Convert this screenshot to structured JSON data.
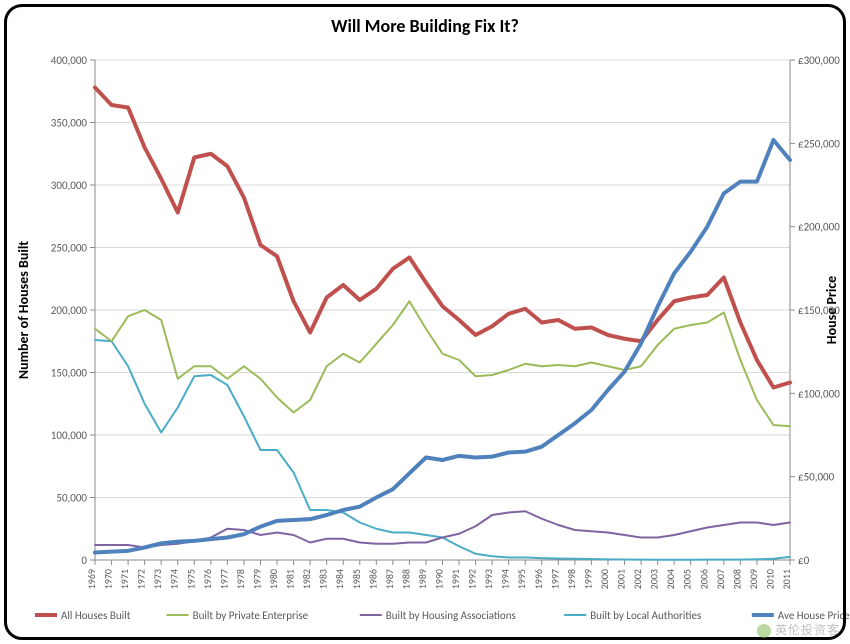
{
  "chart": {
    "type": "line",
    "title": "Will More Building Fix It?",
    "title_fontsize": 18,
    "title_fontweight": "bold",
    "background_color": "#ffffff",
    "plot_background": "#ffffff",
    "border_color": "#8b8b8b",
    "grid_color": "#d9d9d9",
    "axis_line_color": "#8b8b8b",
    "tick_color": "#8b8b8b",
    "font_family": "Calibri, Arial, sans-serif",
    "x": {
      "label": "",
      "categories": [
        "1969",
        "1970",
        "1971",
        "1972",
        "1973",
        "1974",
        "1975",
        "1976",
        "1977",
        "1978",
        "1979",
        "1980",
        "1981",
        "1982",
        "1983",
        "1984",
        "1985",
        "1986",
        "1987",
        "1988",
        "1989",
        "1990",
        "1991",
        "1992",
        "1993",
        "1994",
        "1995",
        "1996",
        "1997",
        "1998",
        "1999",
        "2000",
        "2001",
        "2002",
        "2003",
        "2004",
        "2005",
        "2006",
        "2007",
        "2008",
        "2009",
        "2010",
        "2011"
      ],
      "tick_fontsize": 10,
      "rotate": -90
    },
    "y_left": {
      "label": "Number of Houses Built",
      "label_fontsize": 14,
      "label_fontweight": "bold",
      "min": 0,
      "max": 400000,
      "tick_step": 50000,
      "tick_format": "#,##0",
      "tick_fontsize": 11
    },
    "y_right": {
      "label": "House Price",
      "label_fontsize": 14,
      "label_fontweight": "bold",
      "min": 0,
      "max": 300000,
      "tick_step": 50000,
      "tick_format": "£#,##0",
      "tick_fontsize": 11
    },
    "legend": {
      "position": "bottom",
      "fontsize": 11,
      "items": [
        {
          "key": "all",
          "label": "All Houses Built",
          "color": "#c0504d",
          "width": 4
        },
        {
          "key": "private",
          "label": "Built by Private Enterprise",
          "color": "#9bbb59",
          "width": 2
        },
        {
          "key": "assoc",
          "label": "Built by Housing Associations",
          "color": "#8064a2",
          "width": 2
        },
        {
          "key": "local",
          "label": "Built by Local Authorities",
          "color": "#4bacc6",
          "width": 2
        },
        {
          "key": "price",
          "label": "Ave House Price",
          "color": "#4f81bd",
          "width": 4
        }
      ]
    },
    "series": {
      "all": {
        "axis": "left",
        "color": "#c0504d",
        "width": 4,
        "values": [
          378000,
          364000,
          362000,
          330000,
          305000,
          278000,
          322000,
          325000,
          315000,
          290000,
          252000,
          243000,
          207000,
          182000,
          210000,
          220000,
          208000,
          217000,
          233000,
          242000,
          222000,
          203000,
          192000,
          180000,
          187000,
          197000,
          201000,
          190000,
          192000,
          185000,
          186000,
          180000,
          177000,
          175000,
          192000,
          207000,
          210000,
          212000,
          226000,
          190000,
          160000,
          138000,
          142000
        ]
      },
      "private": {
        "axis": "left",
        "color": "#9bbb59",
        "width": 2,
        "values": [
          185000,
          175000,
          195000,
          200000,
          192000,
          145000,
          155000,
          155000,
          145000,
          155000,
          145000,
          130000,
          118000,
          128000,
          155000,
          165000,
          158000,
          173000,
          188000,
          207000,
          185000,
          165000,
          160000,
          147000,
          148000,
          152000,
          157000,
          155000,
          156000,
          155000,
          158000,
          155000,
          152000,
          155000,
          172000,
          185000,
          188000,
          190000,
          198000,
          160000,
          128000,
          108000,
          107000
        ]
      },
      "assoc": {
        "axis": "left",
        "color": "#8064a2",
        "width": 2,
        "values": [
          12000,
          12000,
          12000,
          10000,
          12000,
          13000,
          15000,
          18000,
          25000,
          24000,
          20000,
          22000,
          20000,
          14000,
          17000,
          17000,
          14000,
          13000,
          13000,
          14000,
          14000,
          18000,
          21000,
          27000,
          36000,
          38000,
          39000,
          33000,
          28000,
          24000,
          23000,
          22000,
          20000,
          18000,
          18000,
          20000,
          23000,
          26000,
          28000,
          30000,
          30000,
          28000,
          30000
        ]
      },
      "local": {
        "axis": "left",
        "color": "#4bacc6",
        "width": 2,
        "values": [
          176000,
          175000,
          155000,
          125000,
          102000,
          122000,
          147000,
          148000,
          140000,
          115000,
          88000,
          88000,
          70000,
          40000,
          40000,
          38000,
          30000,
          25000,
          22000,
          22000,
          20000,
          18000,
          11000,
          5000,
          3000,
          2000,
          2000,
          1500,
          1200,
          1000,
          800,
          500,
          400,
          300,
          250,
          250,
          250,
          300,
          300,
          300,
          600,
          1000,
          2500
        ]
      },
      "price": {
        "axis": "right",
        "color": "#4f81bd",
        "width": 4,
        "values": [
          4500,
          5000,
          5500,
          7500,
          10000,
          11000,
          11500,
          12500,
          13500,
          15500,
          20000,
          23500,
          24000,
          24500,
          27000,
          30000,
          32000,
          37500,
          42500,
          52000,
          61500,
          60000,
          62500,
          61500,
          62000,
          64500,
          65000,
          68000,
          75000,
          82000,
          90000,
          102000,
          113000,
          130000,
          152000,
          172000,
          185000,
          200000,
          220000,
          227000,
          227000,
          252000,
          240000
        ]
      }
    }
  },
  "watermark": "英伦投资客"
}
